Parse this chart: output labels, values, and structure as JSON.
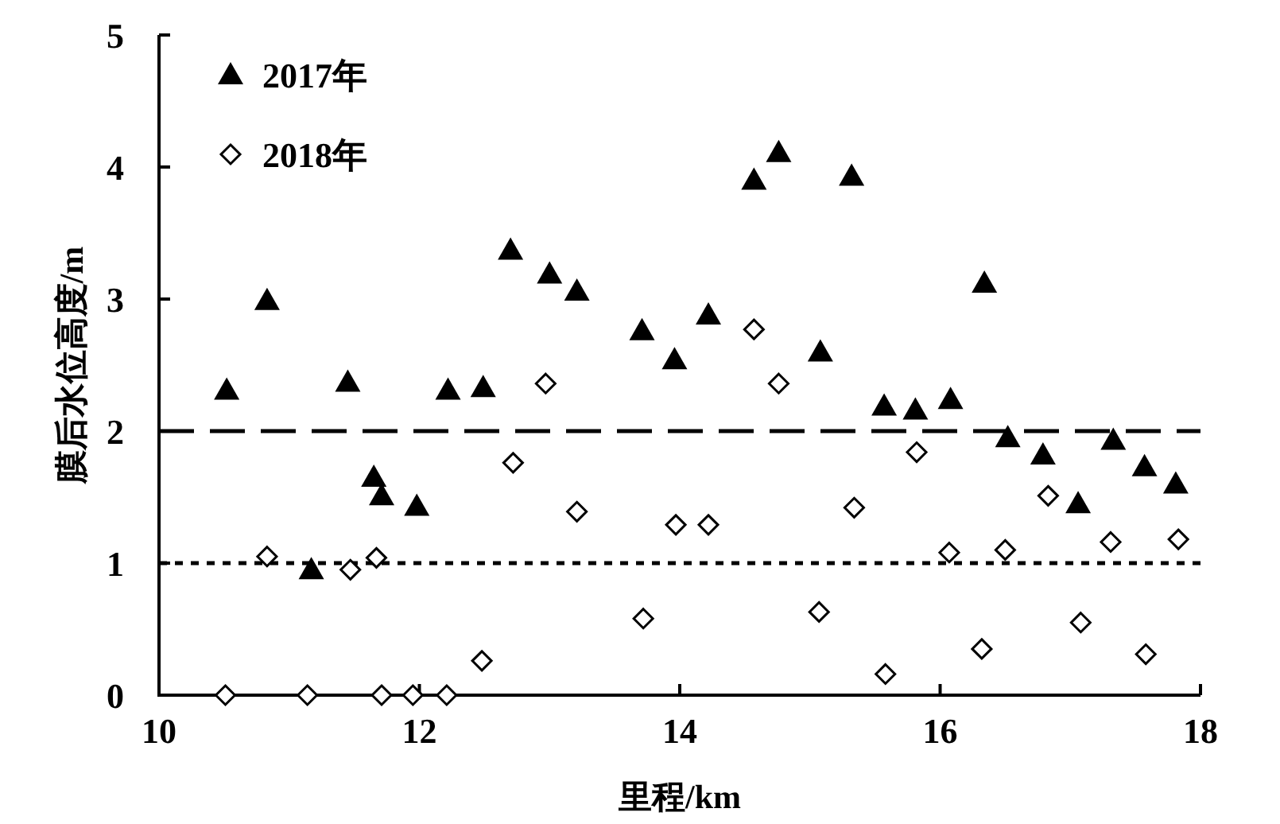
{
  "chart_data": {
    "type": "scatter",
    "xlabel": "里程/km",
    "ylabel": "膜后水位高度/m",
    "xlim": [
      10,
      18
    ],
    "ylim": [
      0,
      5
    ],
    "xticks": [
      10,
      12,
      14,
      16,
      18
    ],
    "yticks": [
      0,
      1,
      2,
      3,
      4,
      5
    ],
    "grid": false,
    "legend": "top left",
    "series": [
      {
        "name": "2017年",
        "color": "#000000",
        "marker": "triangle",
        "x": [
          10.52,
          10.83,
          11.17,
          11.45,
          11.65,
          11.71,
          11.98,
          12.22,
          12.49,
          12.7,
          13.0,
          13.21,
          13.71,
          13.96,
          14.22,
          14.57,
          14.76,
          15.08,
          15.32,
          15.57,
          15.81,
          16.08,
          16.34,
          16.52,
          16.79,
          17.06,
          17.33,
          17.57,
          17.81
        ],
        "values": [
          2.31,
          2.99,
          0.95,
          2.37,
          1.65,
          1.51,
          1.43,
          2.31,
          2.33,
          3.37,
          3.19,
          3.06,
          2.76,
          2.54,
          2.88,
          3.9,
          4.11,
          2.6,
          3.93,
          2.19,
          2.16,
          2.24,
          3.12,
          1.95,
          1.82,
          1.45,
          1.93,
          1.73,
          1.6
        ]
      },
      {
        "name": "2018年",
        "color": "#000000",
        "marker": "diamond",
        "x": [
          10.51,
          10.83,
          11.14,
          11.47,
          11.67,
          11.71,
          11.95,
          12.21,
          12.48,
          12.72,
          12.97,
          13.21,
          13.72,
          13.97,
          14.22,
          14.57,
          14.76,
          15.07,
          15.34,
          15.58,
          15.82,
          16.07,
          16.32,
          16.5,
          16.83,
          17.08,
          17.31,
          17.58,
          17.83
        ],
        "values": [
          0,
          1.05,
          0,
          0.95,
          1.04,
          0,
          0,
          0,
          0.26,
          1.76,
          2.36,
          1.39,
          0.58,
          1.29,
          1.29,
          2.77,
          2.36,
          0.63,
          1.42,
          0.16,
          1.84,
          1.08,
          0.35,
          1.1,
          1.51,
          0.55,
          1.16,
          0.31,
          1.18
        ]
      }
    ],
    "ref_lines": [
      {
        "axis": "y",
        "value": 2,
        "line_style": "dashed",
        "color": "#000000"
      },
      {
        "axis": "y",
        "value": 1,
        "line_style": "dotted",
        "color": "#000000"
      }
    ]
  }
}
